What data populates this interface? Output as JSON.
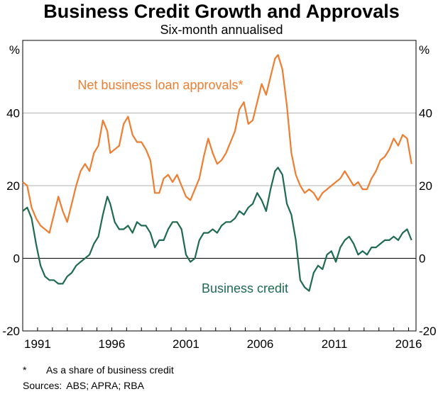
{
  "chart_data": {
    "type": "line",
    "title": "Business Credit Growth and Approvals",
    "subtitle": "Six-month annualised",
    "ylabel_left": "%",
    "ylabel_right": "%",
    "ylim": [
      -20,
      60
    ],
    "yticks": [
      -20,
      0,
      20,
      40
    ],
    "xlim": [
      1990.0,
      2016.5
    ],
    "xticks": [
      {
        "label": "1991",
        "value": 1991.0
      },
      {
        "label": "1996",
        "value": 1996.0
      },
      {
        "label": "2001",
        "value": 2001.0
      },
      {
        "label": "2006",
        "value": 2006.0
      },
      {
        "label": "2011",
        "value": 2011.0
      },
      {
        "label": "2016",
        "value": 2016.0
      }
    ],
    "grid": true,
    "series": [
      {
        "name": "Net business loan approvals*",
        "color": "#ee7d31",
        "x": [
          1990.0,
          1990.3,
          1990.6,
          1990.9,
          1991.2,
          1991.5,
          1991.8,
          1992.1,
          1992.4,
          1992.7,
          1993.0,
          1993.3,
          1993.6,
          1993.9,
          1994.2,
          1994.5,
          1994.8,
          1995.1,
          1995.4,
          1995.7,
          1995.9,
          1996.2,
          1996.5,
          1996.8,
          1997.1,
          1997.4,
          1997.7,
          1998.0,
          1998.3,
          1998.6,
          1998.9,
          1999.2,
          1999.5,
          1999.8,
          2000.1,
          2000.4,
          2000.7,
          2001.0,
          2001.3,
          2001.6,
          2001.9,
          2002.2,
          2002.5,
          2002.8,
          2003.1,
          2003.4,
          2003.7,
          2004.0,
          2004.3,
          2004.6,
          2004.9,
          2005.2,
          2005.5,
          2005.8,
          2006.1,
          2006.4,
          2006.7,
          2007.0,
          2007.2,
          2007.5,
          2007.8,
          2008.1,
          2008.4,
          2008.7,
          2009.0,
          2009.3,
          2009.6,
          2009.9,
          2010.2,
          2010.5,
          2010.8,
          2011.1,
          2011.4,
          2011.7,
          2012.0,
          2012.3,
          2012.6,
          2012.9,
          2013.2,
          2013.5,
          2013.8,
          2014.1,
          2014.4,
          2014.7,
          2015.0,
          2015.3,
          2015.6,
          2015.9,
          2016.2
        ],
        "values": [
          21,
          20,
          14,
          11,
          9,
          8,
          7,
          12,
          17,
          13,
          10,
          15,
          20,
          24,
          26,
          24,
          29,
          31,
          38,
          35,
          29,
          30,
          31,
          37,
          39,
          34,
          32,
          32,
          30,
          27,
          18,
          18,
          22,
          23,
          21,
          23,
          20,
          17,
          16,
          19,
          22,
          28,
          33,
          29,
          26,
          27,
          29,
          32,
          35,
          41,
          43,
          37,
          38,
          43,
          48,
          45,
          50,
          55,
          56,
          52,
          42,
          29,
          23,
          20,
          18,
          19,
          18,
          16,
          18,
          19,
          20,
          21,
          22,
          24,
          22,
          20,
          21,
          19,
          19,
          22,
          24,
          27,
          28,
          30,
          33,
          31,
          34,
          33,
          26
        ]
      },
      {
        "name": "Business credit",
        "color": "#1f6b4f",
        "x": [
          1990.0,
          1990.3,
          1990.6,
          1990.9,
          1991.2,
          1991.5,
          1991.8,
          1992.1,
          1992.4,
          1992.7,
          1993.0,
          1993.3,
          1993.6,
          1993.9,
          1994.2,
          1994.5,
          1994.8,
          1995.1,
          1995.4,
          1995.7,
          1995.9,
          1996.2,
          1996.5,
          1996.8,
          1997.1,
          1997.4,
          1997.7,
          1998.0,
          1998.3,
          1998.6,
          1998.9,
          1999.2,
          1999.5,
          1999.8,
          2000.1,
          2000.4,
          2000.7,
          2001.0,
          2001.3,
          2001.6,
          2001.9,
          2002.2,
          2002.5,
          2002.8,
          2003.1,
          2003.4,
          2003.7,
          2004.0,
          2004.3,
          2004.6,
          2004.9,
          2005.2,
          2005.5,
          2005.8,
          2006.1,
          2006.4,
          2006.7,
          2007.0,
          2007.2,
          2007.5,
          2007.8,
          2008.1,
          2008.4,
          2008.7,
          2009.0,
          2009.3,
          2009.6,
          2009.9,
          2010.2,
          2010.5,
          2010.8,
          2011.1,
          2011.4,
          2011.7,
          2012.0,
          2012.3,
          2012.6,
          2012.9,
          2013.2,
          2013.5,
          2013.8,
          2014.1,
          2014.4,
          2014.7,
          2015.0,
          2015.3,
          2015.6,
          2015.9,
          2016.2
        ],
        "values": [
          13,
          14,
          11,
          4,
          -2,
          -5,
          -6,
          -6,
          -7,
          -7,
          -5,
          -4,
          -2,
          -1,
          0,
          1,
          4,
          6,
          12,
          17,
          15,
          10,
          8,
          8,
          9,
          7,
          10,
          9,
          9,
          7,
          3,
          5,
          5,
          8,
          10,
          10,
          8,
          1,
          -1,
          0,
          5,
          7,
          7,
          8,
          7,
          9,
          10,
          10,
          11,
          13,
          12,
          14,
          15,
          18,
          16,
          13,
          19,
          24,
          25,
          23,
          15,
          12,
          5,
          -6,
          -8,
          -9,
          -4,
          -2,
          -3,
          1,
          2,
          -1,
          3,
          5,
          6,
          4,
          1,
          2,
          1,
          3,
          3,
          4,
          5,
          5,
          6,
          5,
          7,
          8,
          5
        ]
      }
    ],
    "annotations": [
      {
        "text": "Net business loan approvals*",
        "series": 0
      },
      {
        "text": "Business credit",
        "series": 1
      }
    ]
  },
  "footnotes": {
    "asterisk_mark": "*",
    "asterisk_text": "As a share of business credit",
    "sources_label": "Sources:",
    "sources_text": "ABS; APRA; RBA"
  }
}
